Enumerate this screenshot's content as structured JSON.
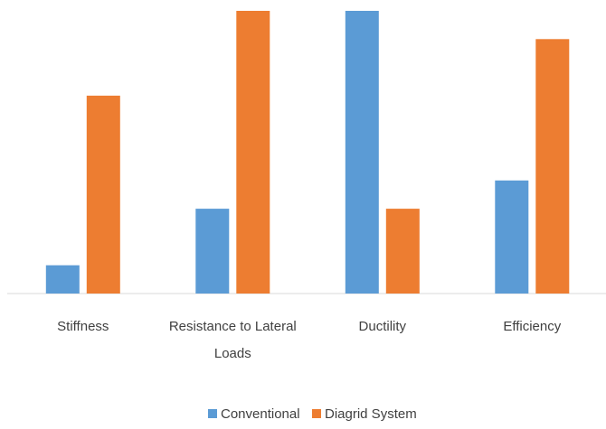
{
  "chart_data": {
    "type": "bar",
    "categories": [
      [
        "Stiffness"
      ],
      [
        "Resistance to Lateral",
        "Loads"
      ],
      [
        "Ductility"
      ],
      [
        "Efficiency"
      ]
    ],
    "series": [
      {
        "name": "Conventional",
        "values": [
          1,
          3,
          10,
          4
        ],
        "color": "#5B9BD5"
      },
      {
        "name": "Diagrid System",
        "values": [
          7,
          10,
          3,
          9
        ],
        "color": "#ED7D31"
      }
    ],
    "title": "",
    "xlabel": "",
    "ylabel": "",
    "ylim": [
      0,
      10
    ],
    "grid": false,
    "y_axis_visible": false,
    "legend": "bottom-center"
  }
}
